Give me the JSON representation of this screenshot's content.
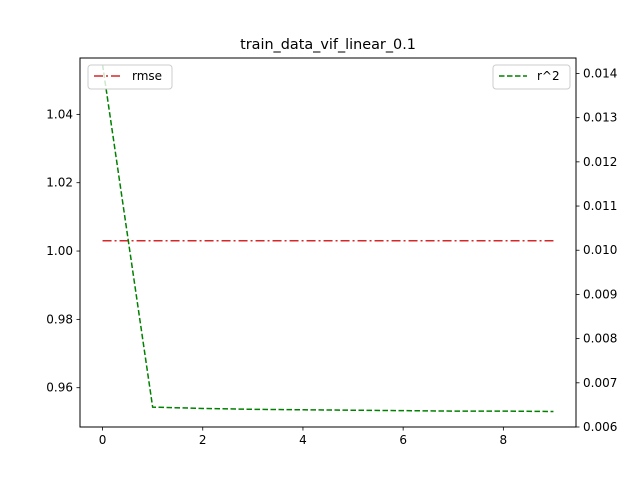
{
  "chart_data": {
    "type": "line",
    "title": "train_data_vif_linear_0.1",
    "xlabel": "",
    "ylabel": "",
    "y2label": "",
    "xlim": [
      -0.45,
      9.45
    ],
    "ylim": [
      0.9485,
      1.0565
    ],
    "y2lim": [
      0.006,
      0.01435
    ],
    "x_ticks": [
      0,
      2,
      4,
      6,
      8
    ],
    "y_ticks": [
      0.96,
      0.98,
      1.0,
      1.02,
      1.04
    ],
    "y2_ticks": [
      0.006,
      0.007,
      0.008,
      0.009,
      0.01,
      0.011,
      0.012,
      0.013,
      0.014
    ],
    "x_tick_labels": [
      "0",
      "2",
      "4",
      "6",
      "8"
    ],
    "y_tick_labels": [
      "0.96",
      "0.98",
      "1.00",
      "1.02",
      "1.04"
    ],
    "y2_tick_labels": [
      "0.006",
      "0.007",
      "0.008",
      "0.009",
      "0.010",
      "0.011",
      "0.012",
      "0.013",
      "0.014"
    ],
    "grid": false,
    "series": [
      {
        "name": "rmse",
        "axis": "left",
        "color": "#d62728",
        "linestyle": "dash-dot",
        "x": [
          0,
          1,
          2,
          3,
          4,
          5,
          6,
          7,
          8,
          9
        ],
        "values": [
          1.003,
          1.003,
          1.003,
          1.003,
          1.003,
          1.003,
          1.003,
          1.003,
          1.003,
          1.003
        ],
        "legend": "upper-left"
      },
      {
        "name": "r^2",
        "axis": "right",
        "color": "#008000",
        "linestyle": "dashed",
        "x": [
          0,
          1,
          2,
          3,
          4,
          5,
          6,
          7,
          8,
          9
        ],
        "values": [
          0.0142,
          0.00645,
          0.00642,
          0.0064,
          0.00639,
          0.00638,
          0.00637,
          0.00636,
          0.00636,
          0.00635
        ],
        "legend": "upper-right"
      }
    ]
  }
}
